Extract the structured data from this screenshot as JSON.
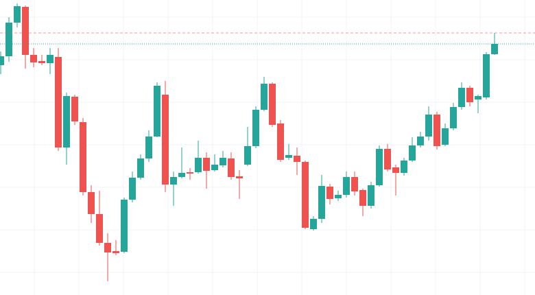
{
  "chart_data": {
    "type": "candlestick",
    "open": [
      335,
      348,
      397,
      420,
      350,
      341,
      338,
      347,
      215,
      289,
      252,
      150,
      118,
      76,
      64,
      63,
      139,
      171,
      199,
      231,
      292,
      161,
      172,
      179,
      179,
      200,
      182,
      189,
      199,
      173,
      190,
      217,
      270,
      308,
      250,
      200,
      203,
      194,
      96,
      111,
      158,
      141,
      146,
      172,
      153,
      130,
      160,
      213,
      186,
      178,
      196,
      218,
      231,
      263,
      219,
      243,
      274,
      302,
      285,
      288,
      351
    ],
    "high": [
      355,
      405,
      425,
      422,
      360,
      350,
      360,
      360,
      295,
      292,
      258,
      160,
      152,
      90,
      80,
      142,
      180,
      205,
      240,
      310,
      312,
      180,
      215,
      185,
      225,
      208,
      205,
      210,
      208,
      182,
      245,
      275,
      318,
      310,
      255,
      220,
      215,
      196,
      115,
      175,
      162,
      152,
      180,
      180,
      155,
      165,
      218,
      220,
      190,
      200,
      230,
      238,
      275,
      267,
      250,
      280,
      310,
      305,
      292,
      354,
      382
    ],
    "low": [
      322,
      340,
      390,
      330,
      332,
      335,
      322,
      210,
      190,
      248,
      145,
      105,
      72,
      20,
      58,
      61,
      135,
      168,
      194,
      230,
      150,
      130,
      170,
      168,
      177,
      155,
      180,
      186,
      168,
      140,
      188,
      214,
      268,
      245,
      194,
      197,
      175,
      96,
      94,
      105,
      132,
      137,
      142,
      145,
      115,
      126,
      158,
      180,
      145,
      174,
      194,
      215,
      225,
      212,
      217,
      240,
      270,
      275,
      265,
      285,
      350
    ],
    "close": [
      348,
      397,
      421,
      350,
      339,
      338,
      350,
      215,
      290,
      253,
      150,
      118,
      76,
      62,
      61,
      139,
      171,
      199,
      231,
      305,
      161,
      172,
      178,
      177,
      200,
      181,
      190,
      200,
      172,
      170,
      217,
      270,
      308,
      248,
      197,
      204,
      194,
      98,
      111,
      159,
      140,
      146,
      172,
      151,
      130,
      160,
      213,
      183,
      178,
      196,
      218,
      231,
      263,
      217,
      243,
      274,
      302,
      281,
      290,
      351,
      366
    ],
    "up_color": "#26a69a",
    "down_color": "#ef5350",
    "ylim": [
      0,
      430
    ],
    "grid": true
  }
}
